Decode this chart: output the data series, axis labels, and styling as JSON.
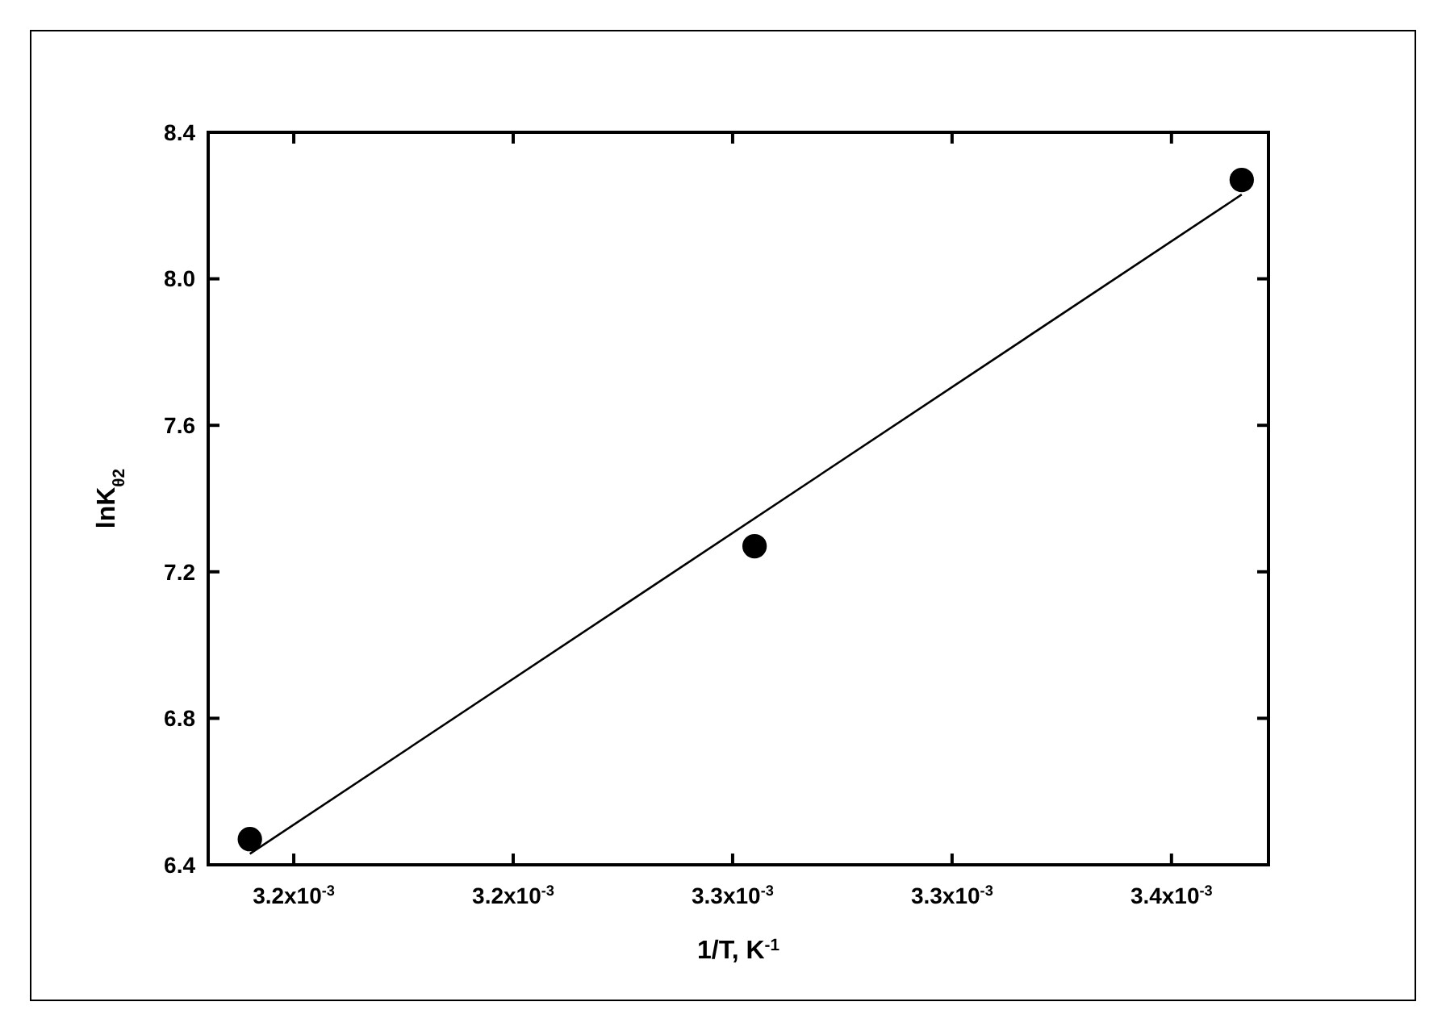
{
  "chart_data": {
    "type": "scatter",
    "xlabel": "1/T, K$^{-1}$",
    "ylabel": "lnK$_{θ2}$",
    "xlim": [
      0.0031805,
      0.0034221
    ],
    "ylim": [
      6.4,
      8.4
    ],
    "xticks": [
      {
        "value": 0.0032,
        "label": "3.2x10$^{-3}$"
      },
      {
        "value": 0.00325,
        "label": "3.2x10$^{-3}$"
      },
      {
        "value": 0.0033,
        "label": "3.3x10$^{-3}$"
      },
      {
        "value": 0.00335,
        "label": "3.3x10$^{-3}$"
      },
      {
        "value": 0.0034,
        "label": "3.4x10$^{-3}$"
      }
    ],
    "yticks": [
      {
        "value": 6.4,
        "label": "6.4"
      },
      {
        "value": 6.8,
        "label": "6.8"
      },
      {
        "value": 7.2,
        "label": "7.2"
      },
      {
        "value": 7.6,
        "label": "7.6"
      },
      {
        "value": 8.0,
        "label": "8.0"
      },
      {
        "value": 8.4,
        "label": "8.4"
      }
    ],
    "grid": false,
    "series": [
      {
        "color": "#000000",
        "marker": "circle",
        "x": [
          0.00319,
          0.003305,
          0.003416
        ],
        "values": [
          6.47,
          7.27,
          8.27
        ]
      },
      {
        "type": "line",
        "color": "#000000",
        "line_style": "solid",
        "marker": "none",
        "x": [
          0.00319,
          0.003416
        ],
        "values": [
          6.43,
          8.23
        ]
      }
    ]
  }
}
